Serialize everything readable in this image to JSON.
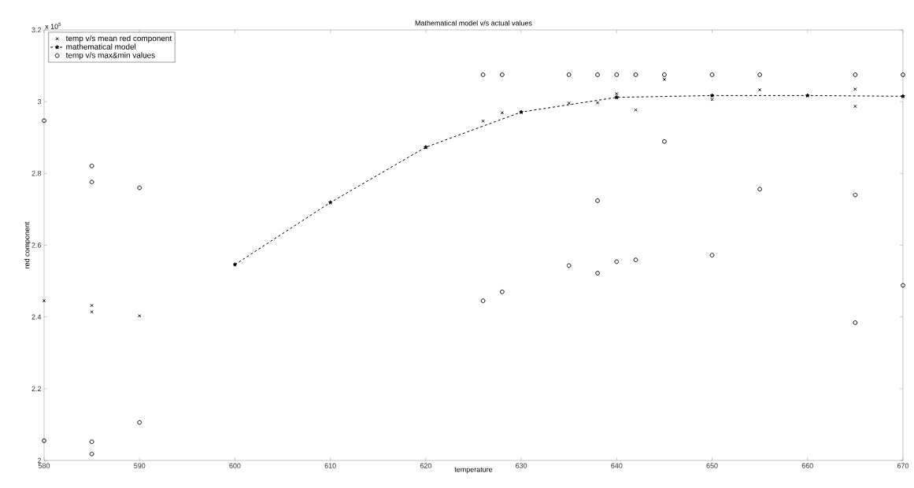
{
  "chart_data": {
    "type": "scatter",
    "title": "Mathematical model v/s actual values",
    "xlabel": "temperature",
    "ylabel": "red component",
    "annotations": [
      "x 10$^{5}$"
    ],
    "xlim": [
      580,
      670
    ],
    "xticks": [
      580,
      590,
      600,
      610,
      620,
      630,
      640,
      650,
      660,
      670
    ],
    "ylim": [
      2,
      3.2
    ],
    "yticks": [
      2,
      2.2,
      2.4,
      2.6,
      2.8,
      3,
      3.2
    ],
    "grid": false,
    "legend": "top left",
    "series": [
      {
        "name": "temp v/s mean red component",
        "marker": "cross",
        "color": "#000000",
        "x": [
          580,
          585,
          585,
          590,
          626,
          628,
          635,
          638,
          640,
          642,
          645,
          650,
          655,
          665,
          665
        ],
        "values": [
          2.445,
          2.432,
          2.414,
          2.403,
          2.946,
          2.969,
          2.996,
          2.997,
          3.022,
          2.977,
          3.062,
          3.006,
          3.033,
          3.035,
          2.987
        ]
      },
      {
        "name": "mathematical model",
        "type": "line",
        "marker": "star",
        "line_style": "dashed",
        "color": "#000000",
        "x": [
          600,
          610,
          620,
          630,
          640,
          650,
          660,
          670
        ],
        "values": [
          2.546,
          2.719,
          2.873,
          2.971,
          3.012,
          3.017,
          3.017,
          3.015
        ]
      },
      {
        "name": "temp v/s  max&min values",
        "marker": "circle",
        "color": "#000000",
        "x": [
          580,
          580,
          585,
          585,
          585,
          585,
          590,
          590,
          626,
          626,
          628,
          628,
          635,
          635,
          638,
          638,
          638,
          640,
          640,
          642,
          642,
          645,
          645,
          650,
          650,
          655,
          655,
          665,
          665,
          665,
          670,
          670
        ],
        "values": [
          2.947,
          2.055,
          2.821,
          2.776,
          2.052,
          2.018,
          2.76,
          2.106,
          3.075,
          2.445,
          3.075,
          2.47,
          3.075,
          2.543,
          3.075,
          2.724,
          2.522,
          3.075,
          2.554,
          3.075,
          2.559,
          3.075,
          2.889,
          3.075,
          2.572,
          3.075,
          2.756,
          3.075,
          2.74,
          2.384,
          3.075,
          2.488
        ]
      }
    ]
  }
}
